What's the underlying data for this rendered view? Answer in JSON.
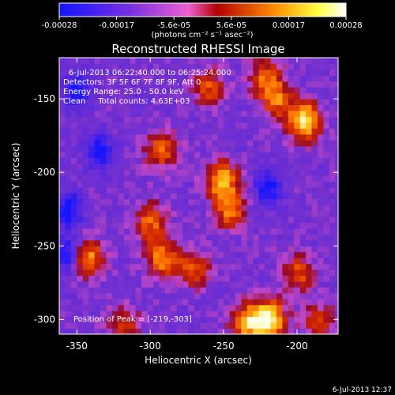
{
  "colorbar": {
    "ticks": [
      "-0.00028",
      "-0.00017",
      "-5.6e-05",
      "5.6e-05",
      "0.00017",
      "0.00028"
    ],
    "units": "(photons cm⁻² s⁻¹ asec⁻²)",
    "colors": [
      "#1414ff",
      "#7a30e0",
      "#ee5fd2",
      "#b40000",
      "#ff8c00",
      "#ffff40",
      "#ffffff"
    ]
  },
  "chart_data": {
    "type": "heatmap",
    "title": "Reconstructed RHESSI Image",
    "xlabel": "Heliocentric X (arcsec)",
    "ylabel": "Heliocentric Y (arcsec)",
    "xlim": [
      -362,
      -172
    ],
    "ylim": [
      -310,
      -122
    ],
    "xticks": [
      -350,
      -300,
      -250,
      -200
    ],
    "xtick_labels": [
      "-350",
      "-300",
      "-250",
      "-200"
    ],
    "yticks": [
      -150,
      -200,
      -250,
      -300
    ],
    "ytick_labels": [
      "-150",
      "-200",
      "-250",
      "-300"
    ],
    "annotations": [
      "6-Jul-2013 06:22:40.000 to 06:25:24.000",
      "Detectors: 3F 5F 6F 7F 8F 9F, Att 0",
      "Energy Range: 25.0 - 50.0 keV",
      "Clean     Total counts: 4.63E+03"
    ],
    "peak_label": "Position of Peak = [-219,-303]",
    "peak": [
      -219,
      -303
    ],
    "hot_spots": [
      {
        "x": -195,
        "y": -165,
        "level": 0.95
      },
      {
        "x": -214,
        "y": -150,
        "level": 0.55
      },
      {
        "x": -222,
        "y": -135,
        "level": 0.5
      },
      {
        "x": -251,
        "y": -205,
        "level": 0.75
      },
      {
        "x": -246,
        "y": -225,
        "level": 0.6
      },
      {
        "x": -292,
        "y": -185,
        "level": 0.55
      },
      {
        "x": -300,
        "y": -233,
        "level": 0.55
      },
      {
        "x": -292,
        "y": -258,
        "level": 0.65
      },
      {
        "x": -271,
        "y": -265,
        "level": 0.55
      },
      {
        "x": -260,
        "y": -142,
        "level": 0.5
      },
      {
        "x": -342,
        "y": -258,
        "level": 0.65
      },
      {
        "x": -219,
        "y": -300,
        "level": 1.0
      },
      {
        "x": -234,
        "y": -302,
        "level": 0.7
      },
      {
        "x": -185,
        "y": -302,
        "level": 0.5
      },
      {
        "x": -199,
        "y": -268,
        "level": 0.5
      },
      {
        "x": -318,
        "y": -303,
        "level": 0.45
      }
    ],
    "cold_spots": [
      {
        "x": -357,
        "y": -255
      },
      {
        "x": -355,
        "y": -225
      },
      {
        "x": -350,
        "y": -145
      },
      {
        "x": -220,
        "y": -210
      },
      {
        "x": -335,
        "y": -185
      }
    ]
  },
  "footer": {
    "timestamp": "6-Jul-2013 12:37"
  }
}
